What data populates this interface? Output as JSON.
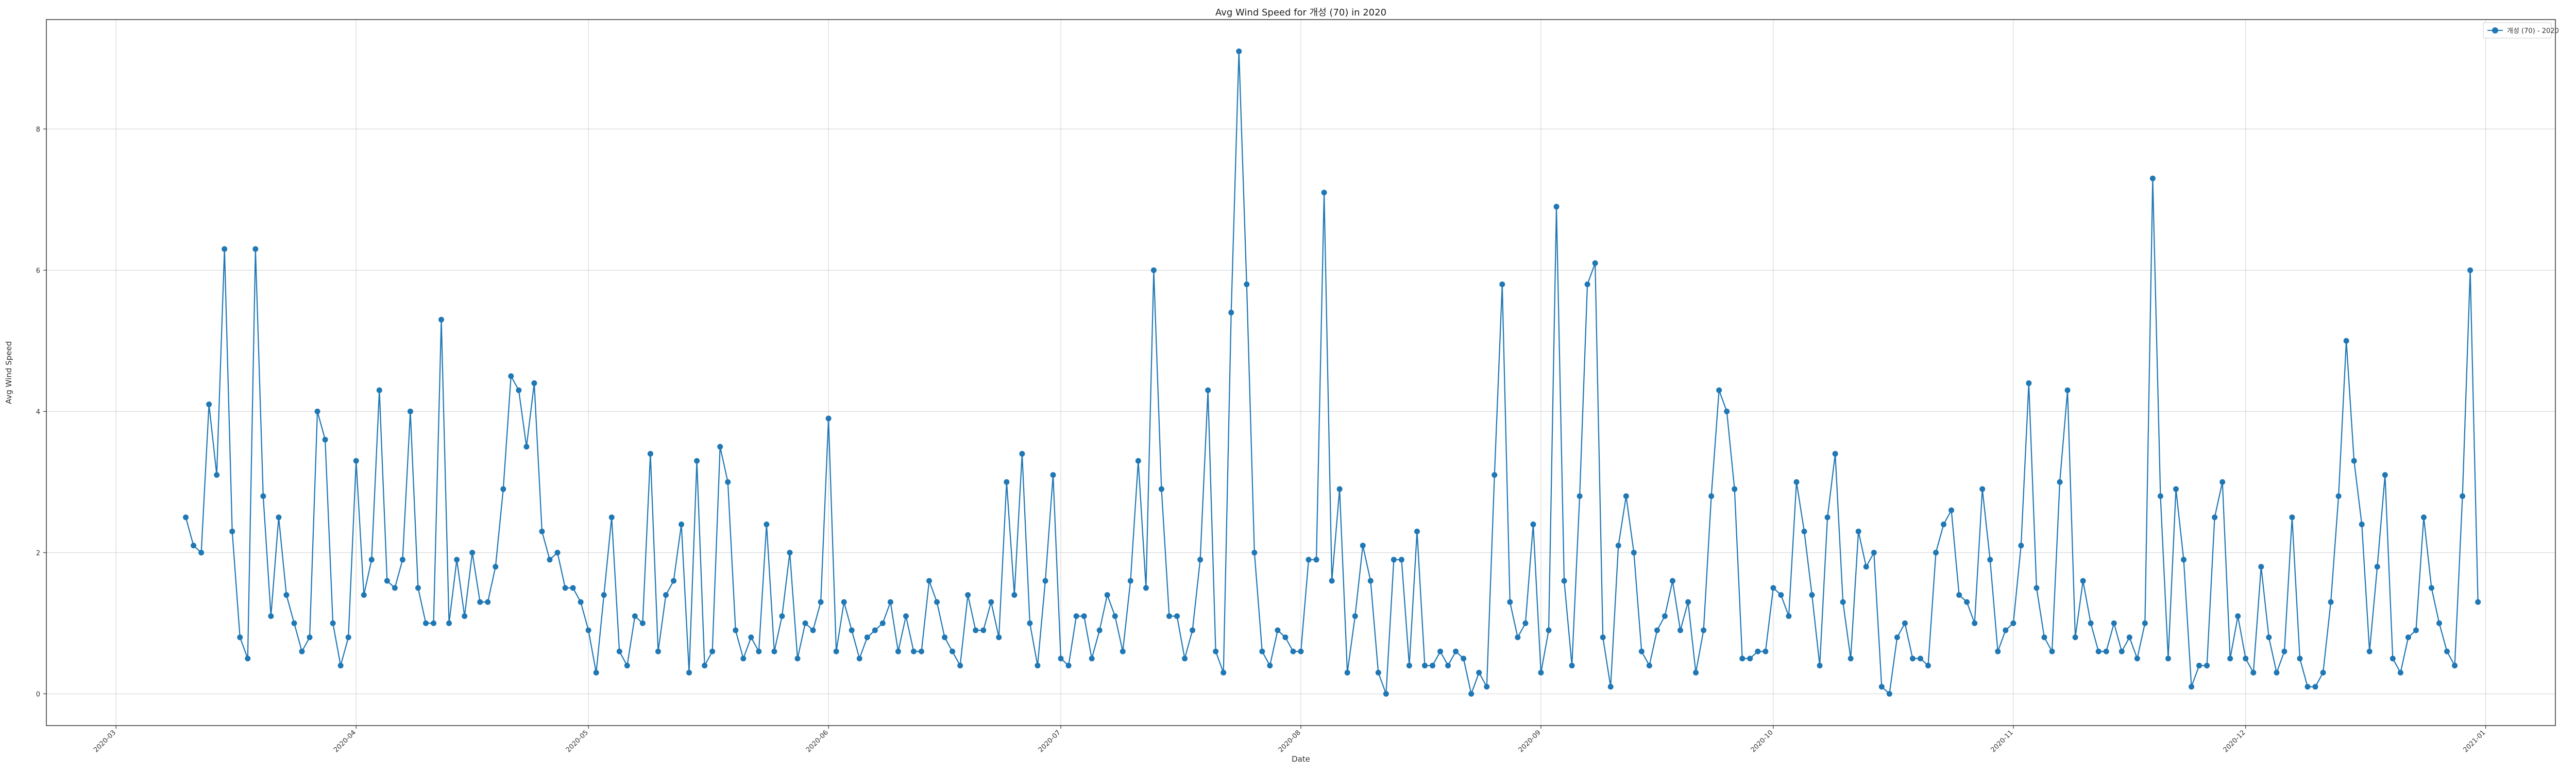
{
  "chart_data": {
    "type": "line",
    "title": "Avg Wind Speed for 개성 (70) in 2020",
    "xlabel": "Date",
    "ylabel": "Avg Wind Speed",
    "ylim": [
      -0.45,
      9.55
    ],
    "xlim": [
      "2020-02-21",
      "2021-01-10"
    ],
    "yticks": [
      0,
      2,
      4,
      6,
      8
    ],
    "xticks": [
      "2020-03",
      "2020-04",
      "2020-05",
      "2020-06",
      "2020-07",
      "2020-08",
      "2020-09",
      "2020-10",
      "2020-11",
      "2020-12",
      "2021-01"
    ],
    "grid": true,
    "legend_position": "top-right",
    "color": "#1f77b4",
    "series": [
      {
        "name": "개성 (70) - 2020",
        "start_date": "2020-03-10",
        "values": [
          2.5,
          2.1,
          2.0,
          4.1,
          3.1,
          6.3,
          2.3,
          0.8,
          0.5,
          6.3,
          2.8,
          1.1,
          2.5,
          1.4,
          1.0,
          0.6,
          0.8,
          4.0,
          3.6,
          1.0,
          0.4,
          0.8,
          3.3,
          1.4,
          1.9,
          4.3,
          1.6,
          1.5,
          1.9,
          4.0,
          1.5,
          1.0,
          1.0,
          5.3,
          1.0,
          1.9,
          1.1,
          2.0,
          1.3,
          1.3,
          1.8,
          2.9,
          4.5,
          4.3,
          3.5,
          4.4,
          2.3,
          1.9,
          2.0,
          1.5,
          1.5,
          1.3,
          0.9,
          0.3,
          1.4,
          2.5,
          0.6,
          0.4,
          1.1,
          1.0,
          3.4,
          0.6,
          1.4,
          1.6,
          2.4,
          0.3,
          3.3,
          0.4,
          0.6,
          3.5,
          3.0,
          0.9,
          0.5,
          0.8,
          0.6,
          2.4,
          0.6,
          1.1,
          2.0,
          0.5,
          1.0,
          0.9,
          1.3,
          3.9,
          0.6,
          1.3,
          0.9,
          0.5,
          0.8,
          0.9,
          1.0,
          1.3,
          0.6,
          1.1,
          0.6,
          0.6,
          1.6,
          1.3,
          0.8,
          0.6,
          0.4,
          1.4,
          0.9,
          0.9,
          1.3,
          0.8,
          3.0,
          1.4,
          3.4,
          1.0,
          0.4,
          1.6,
          3.1,
          0.5,
          0.4,
          1.1,
          1.1,
          0.5,
          0.9,
          1.4,
          1.1,
          0.6,
          1.6,
          3.3,
          1.5,
          6.0,
          2.9,
          1.1,
          1.1,
          0.5,
          0.9,
          1.9,
          4.3,
          0.6,
          0.3,
          5.4,
          9.1,
          5.8,
          2.0,
          0.6,
          0.4,
          0.9,
          0.8,
          0.6,
          0.6,
          1.9,
          1.9,
          7.1,
          1.6,
          2.9,
          0.3,
          1.1,
          2.1,
          1.6,
          0.3,
          0.0,
          1.9,
          1.9,
          0.4,
          2.3,
          0.4,
          0.4,
          0.6,
          0.4,
          0.6,
          0.5,
          0.0,
          0.3,
          0.1,
          3.1,
          5.8,
          1.3,
          0.8,
          1.0,
          2.4,
          0.3,
          0.9,
          6.9,
          1.6,
          0.4,
          2.8,
          5.8,
          6.1,
          0.8,
          0.1,
          2.1,
          2.8,
          2.0,
          0.6,
          0.4,
          0.9,
          1.1,
          1.6,
          0.9,
          1.3,
          0.3,
          0.9,
          2.8,
          4.3,
          4.0,
          2.9,
          0.5,
          0.5,
          0.6,
          0.6,
          1.5,
          1.4,
          1.1,
          3.0,
          2.3,
          1.4,
          0.4,
          2.5,
          3.4,
          1.3,
          0.5,
          2.3,
          1.8,
          2.0,
          0.1,
          0.0,
          0.8,
          1.0,
          0.5,
          0.5,
          0.4,
          2.0,
          2.4,
          2.6,
          1.4,
          1.3,
          1.0,
          2.9,
          1.9,
          0.6,
          0.9,
          1.0,
          2.1,
          4.4,
          1.5,
          0.8,
          0.6,
          3.0,
          4.3,
          0.8,
          1.6,
          1.0,
          0.6,
          0.6,
          1.0,
          0.6,
          0.8,
          0.5,
          1.0,
          7.3,
          2.8,
          0.5,
          2.9,
          1.9,
          0.1,
          0.4,
          0.4,
          2.5,
          3.0,
          0.5,
          1.1,
          0.5,
          0.3,
          1.8,
          0.8,
          0.3,
          0.6,
          2.5,
          0.5,
          0.1,
          0.1,
          0.3,
          1.3,
          2.8,
          5.0,
          3.3,
          2.4,
          0.6,
          1.8,
          3.1,
          0.5,
          0.3,
          0.8,
          0.9,
          2.5,
          1.5,
          1.0,
          0.6,
          0.4,
          2.8,
          6.0,
          1.3
        ]
      }
    ]
  }
}
